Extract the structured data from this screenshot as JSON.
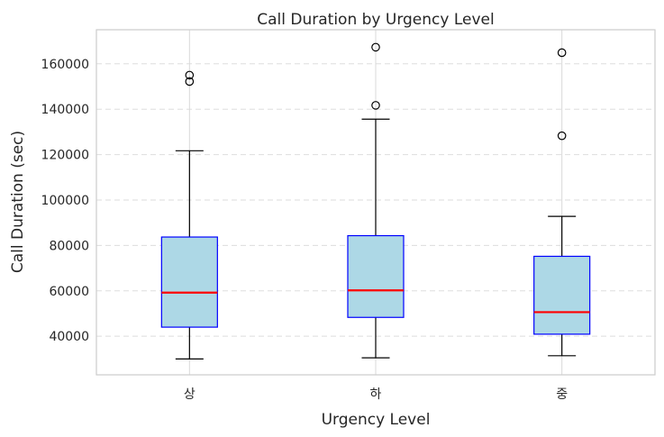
{
  "chart_data": {
    "type": "box",
    "title": "Call Duration by Urgency Level",
    "xlabel": "Urgency Level",
    "ylabel": "Call Duration (sec)",
    "categories": [
      "상",
      "하",
      "중"
    ],
    "ylim": [
      23000,
      175000
    ],
    "yticks": [
      40000,
      60000,
      80000,
      100000,
      120000,
      140000,
      160000
    ],
    "grid": "y-dashed, x-solid",
    "colors": {
      "box_fill": "#add8e6",
      "box_edge": "#0000ff",
      "median": "#ff0000",
      "whisker": "#000000",
      "outlier": "#000000"
    },
    "boxes": [
      {
        "category": "상",
        "whisker_low": 30000,
        "q1": 44000,
        "median": 59200,
        "q3": 83700,
        "whisker_high": 121700,
        "outliers": [
          152200,
          155000
        ]
      },
      {
        "category": "하",
        "whisker_low": 30500,
        "q1": 48300,
        "median": 60200,
        "q3": 84300,
        "whisker_high": 135600,
        "outliers": [
          141700,
          167300
        ]
      },
      {
        "category": "중",
        "whisker_low": 31400,
        "q1": 40900,
        "median": 50600,
        "q3": 75200,
        "whisker_high": 92800,
        "outliers": [
          128300,
          164900
        ]
      }
    ]
  }
}
